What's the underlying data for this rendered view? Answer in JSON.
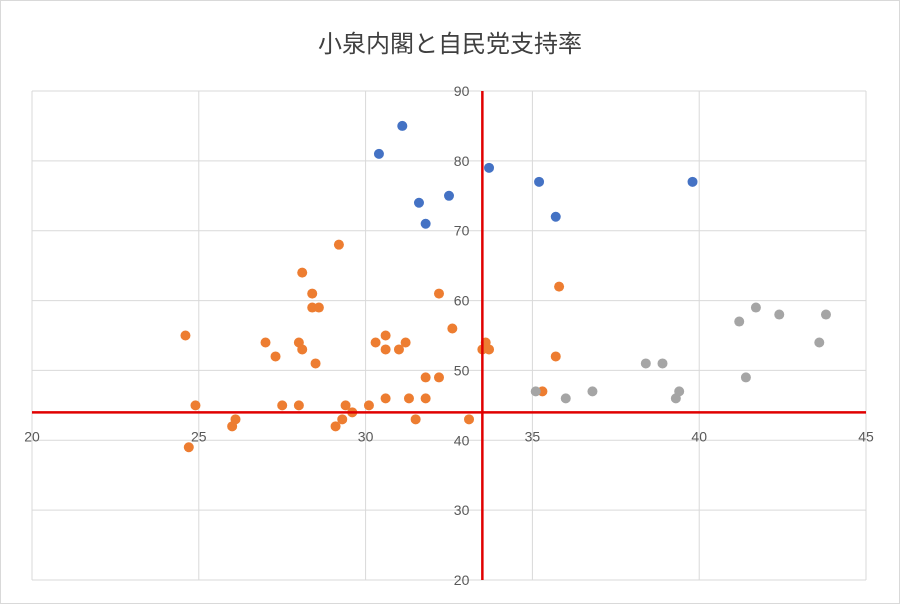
{
  "chart_data": {
    "type": "scatter",
    "title": "小泉内閣と自民党支持率",
    "xlabel": "",
    "ylabel": "",
    "xlim": [
      20,
      45
    ],
    "ylim": [
      20,
      90
    ],
    "x_ticks": [
      "20",
      "25",
      "30",
      "35",
      "40",
      "45"
    ],
    "y_ticks": [
      "20",
      "30",
      "40",
      "50",
      "60",
      "70",
      "80",
      "90"
    ],
    "grid": true,
    "reference_lines": {
      "vertical_x": 33.5,
      "horizontal_y": 44,
      "color": "#e00000"
    },
    "series": [
      {
        "color": "#4472c4",
        "points": [
          [
            30.4,
            81
          ],
          [
            31.1,
            85
          ],
          [
            31.6,
            74
          ],
          [
            31.8,
            71
          ],
          [
            32.5,
            75
          ],
          [
            33.7,
            79
          ],
          [
            35.2,
            77
          ],
          [
            35.7,
            72
          ],
          [
            39.8,
            77
          ]
        ]
      },
      {
        "color": "#ed7d31",
        "points": [
          [
            24.6,
            55
          ],
          [
            24.7,
            39
          ],
          [
            24.9,
            45
          ],
          [
            26.0,
            42
          ],
          [
            26.1,
            43
          ],
          [
            27.0,
            54
          ],
          [
            27.3,
            52
          ],
          [
            27.5,
            45
          ],
          [
            28.0,
            54
          ],
          [
            28.0,
            45
          ],
          [
            28.1,
            53
          ],
          [
            28.1,
            64
          ],
          [
            28.4,
            61
          ],
          [
            28.4,
            59
          ],
          [
            28.6,
            59
          ],
          [
            28.5,
            51
          ],
          [
            29.1,
            42
          ],
          [
            29.2,
            68
          ],
          [
            29.3,
            43
          ],
          [
            29.4,
            45
          ],
          [
            29.6,
            44
          ],
          [
            30.1,
            45
          ],
          [
            30.3,
            54
          ],
          [
            30.6,
            55
          ],
          [
            30.6,
            53
          ],
          [
            30.6,
            46
          ],
          [
            31.0,
            53
          ],
          [
            31.2,
            54
          ],
          [
            31.3,
            46
          ],
          [
            31.5,
            43
          ],
          [
            31.8,
            49
          ],
          [
            31.8,
            46
          ],
          [
            32.2,
            61
          ],
          [
            32.2,
            49
          ],
          [
            32.6,
            56
          ],
          [
            33.1,
            43
          ],
          [
            33.5,
            53
          ],
          [
            33.6,
            54
          ],
          [
            33.7,
            53
          ],
          [
            35.3,
            47
          ],
          [
            35.7,
            52
          ],
          [
            35.8,
            62
          ]
        ]
      },
      {
        "color": "#a5a5a5",
        "points": [
          [
            35.1,
            47
          ],
          [
            36.0,
            46
          ],
          [
            36.8,
            47
          ],
          [
            38.4,
            51
          ],
          [
            38.9,
            51
          ],
          [
            39.3,
            46
          ],
          [
            39.4,
            47
          ],
          [
            41.2,
            57
          ],
          [
            41.4,
            49
          ],
          [
            41.7,
            59
          ],
          [
            42.4,
            58
          ],
          [
            43.6,
            54
          ],
          [
            43.8,
            58
          ]
        ]
      }
    ]
  }
}
